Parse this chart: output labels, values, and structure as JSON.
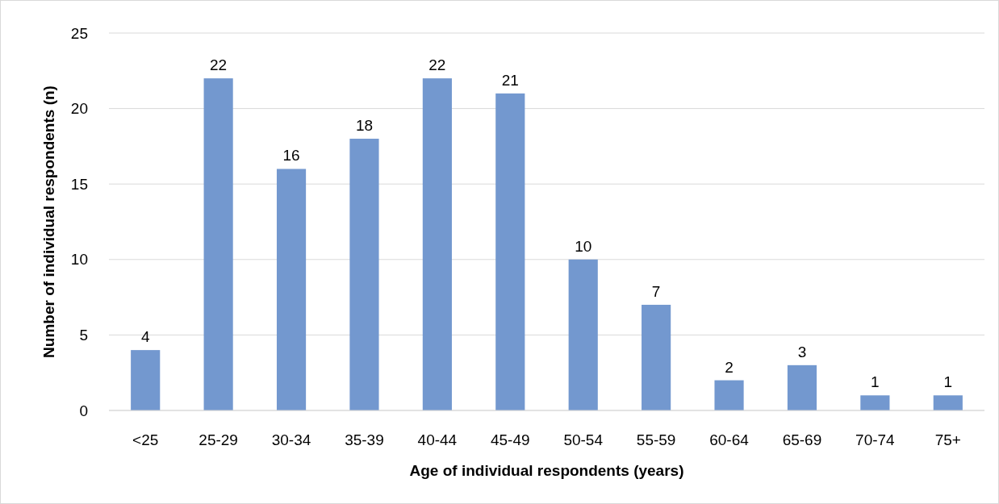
{
  "chart_data": {
    "type": "bar",
    "xlabel": "Age of individual respondents (years)",
    "ylabel": "Number of individual respondents (n)",
    "categories": [
      "<25",
      "25-29",
      "30-34",
      "35-39",
      "40-44",
      "45-49",
      "50-54",
      "55-59",
      "60-64",
      "65-69",
      "70-74",
      "75+"
    ],
    "values": [
      4,
      22,
      16,
      18,
      22,
      21,
      10,
      7,
      2,
      3,
      1,
      1
    ],
    "color": "#7398cf",
    "ylim": [
      0,
      25
    ],
    "yticks": [
      0,
      5,
      10,
      15,
      20,
      25
    ],
    "grid": "y",
    "data_labels": true
  }
}
